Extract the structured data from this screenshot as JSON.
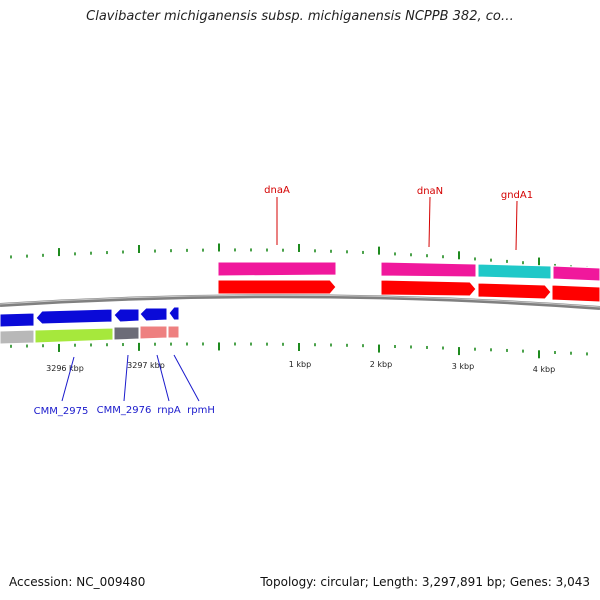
{
  "title": "Clavibacter michiganensis subsp. michiganensis NCPPB 382, co…",
  "footer": {
    "accession": "Accession: NC_009480",
    "summary": "Topology: circular; Length: 3,297,891 bp; Genes: 3,043"
  },
  "colors": {
    "backbone": "#808080",
    "tick": "#1e8a1e",
    "label_red": "#d40000",
    "label_blue": "#1a1acc",
    "gene_blue": "#0a0ad8",
    "cds_red": "#ff0000",
    "pink": "#f0189c",
    "cyan": "#20c8c8",
    "lime": "#a6e83c",
    "gray": "#b8b8b8",
    "dark_gray": "#6c6c78",
    "salmon": "#ee8080"
  },
  "scale_labels": [
    "3296 kbp",
    "3297 kbp",
    "1 kbp",
    "2 kbp",
    "3 kbp",
    "4 kbp"
  ],
  "gene_labels": {
    "forward": [
      "dnaA",
      "dnaN",
      "gndA1"
    ],
    "reverse": [
      "CMM_2975",
      "CMM_2976",
      "rnpA",
      "rpmH"
    ]
  }
}
